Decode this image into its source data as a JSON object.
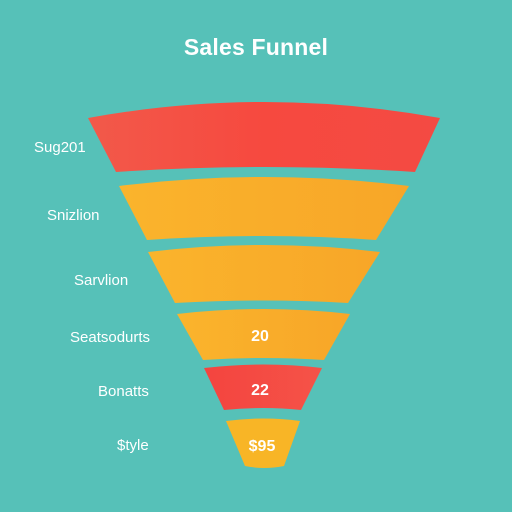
{
  "title": "Sales Funnel",
  "colors": {
    "background": "#56c1b8",
    "red": "#f4524a",
    "orange": "#f9b02c",
    "yellow_orange": "#f7bf2f"
  },
  "stages": [
    {
      "label": "Sug201",
      "value": ""
    },
    {
      "label": "Snizlion",
      "value": ""
    },
    {
      "label": "Sarvlion",
      "value": ""
    },
    {
      "label": "Seatsodurts",
      "value": "20"
    },
    {
      "label": "Bonatts",
      "value": "22"
    },
    {
      "label": "$tyle",
      "value": "$95"
    }
  ]
}
